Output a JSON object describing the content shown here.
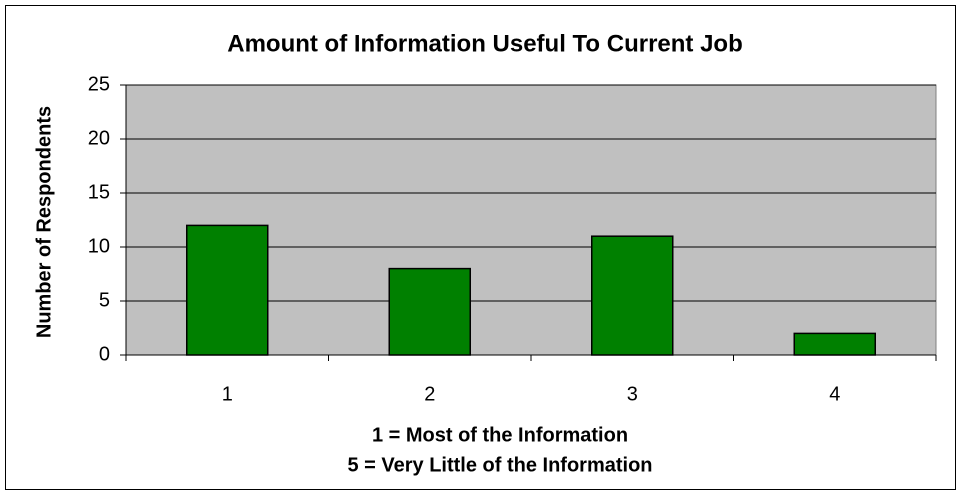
{
  "chart_data": {
    "type": "bar",
    "title": "Amount of Information Useful To Current Job",
    "categories": [
      "1",
      "2",
      "3",
      "4"
    ],
    "values": [
      12,
      8,
      11,
      2
    ],
    "color": "#008000",
    "ylabel": "Number of Respondents",
    "xlabel": [
      "1 = Most of the Information",
      "5 = Very Little of the Information"
    ],
    "ylim": [
      0,
      25
    ],
    "yticks": [
      0,
      5,
      10,
      15,
      20,
      25
    ],
    "grid": true
  }
}
